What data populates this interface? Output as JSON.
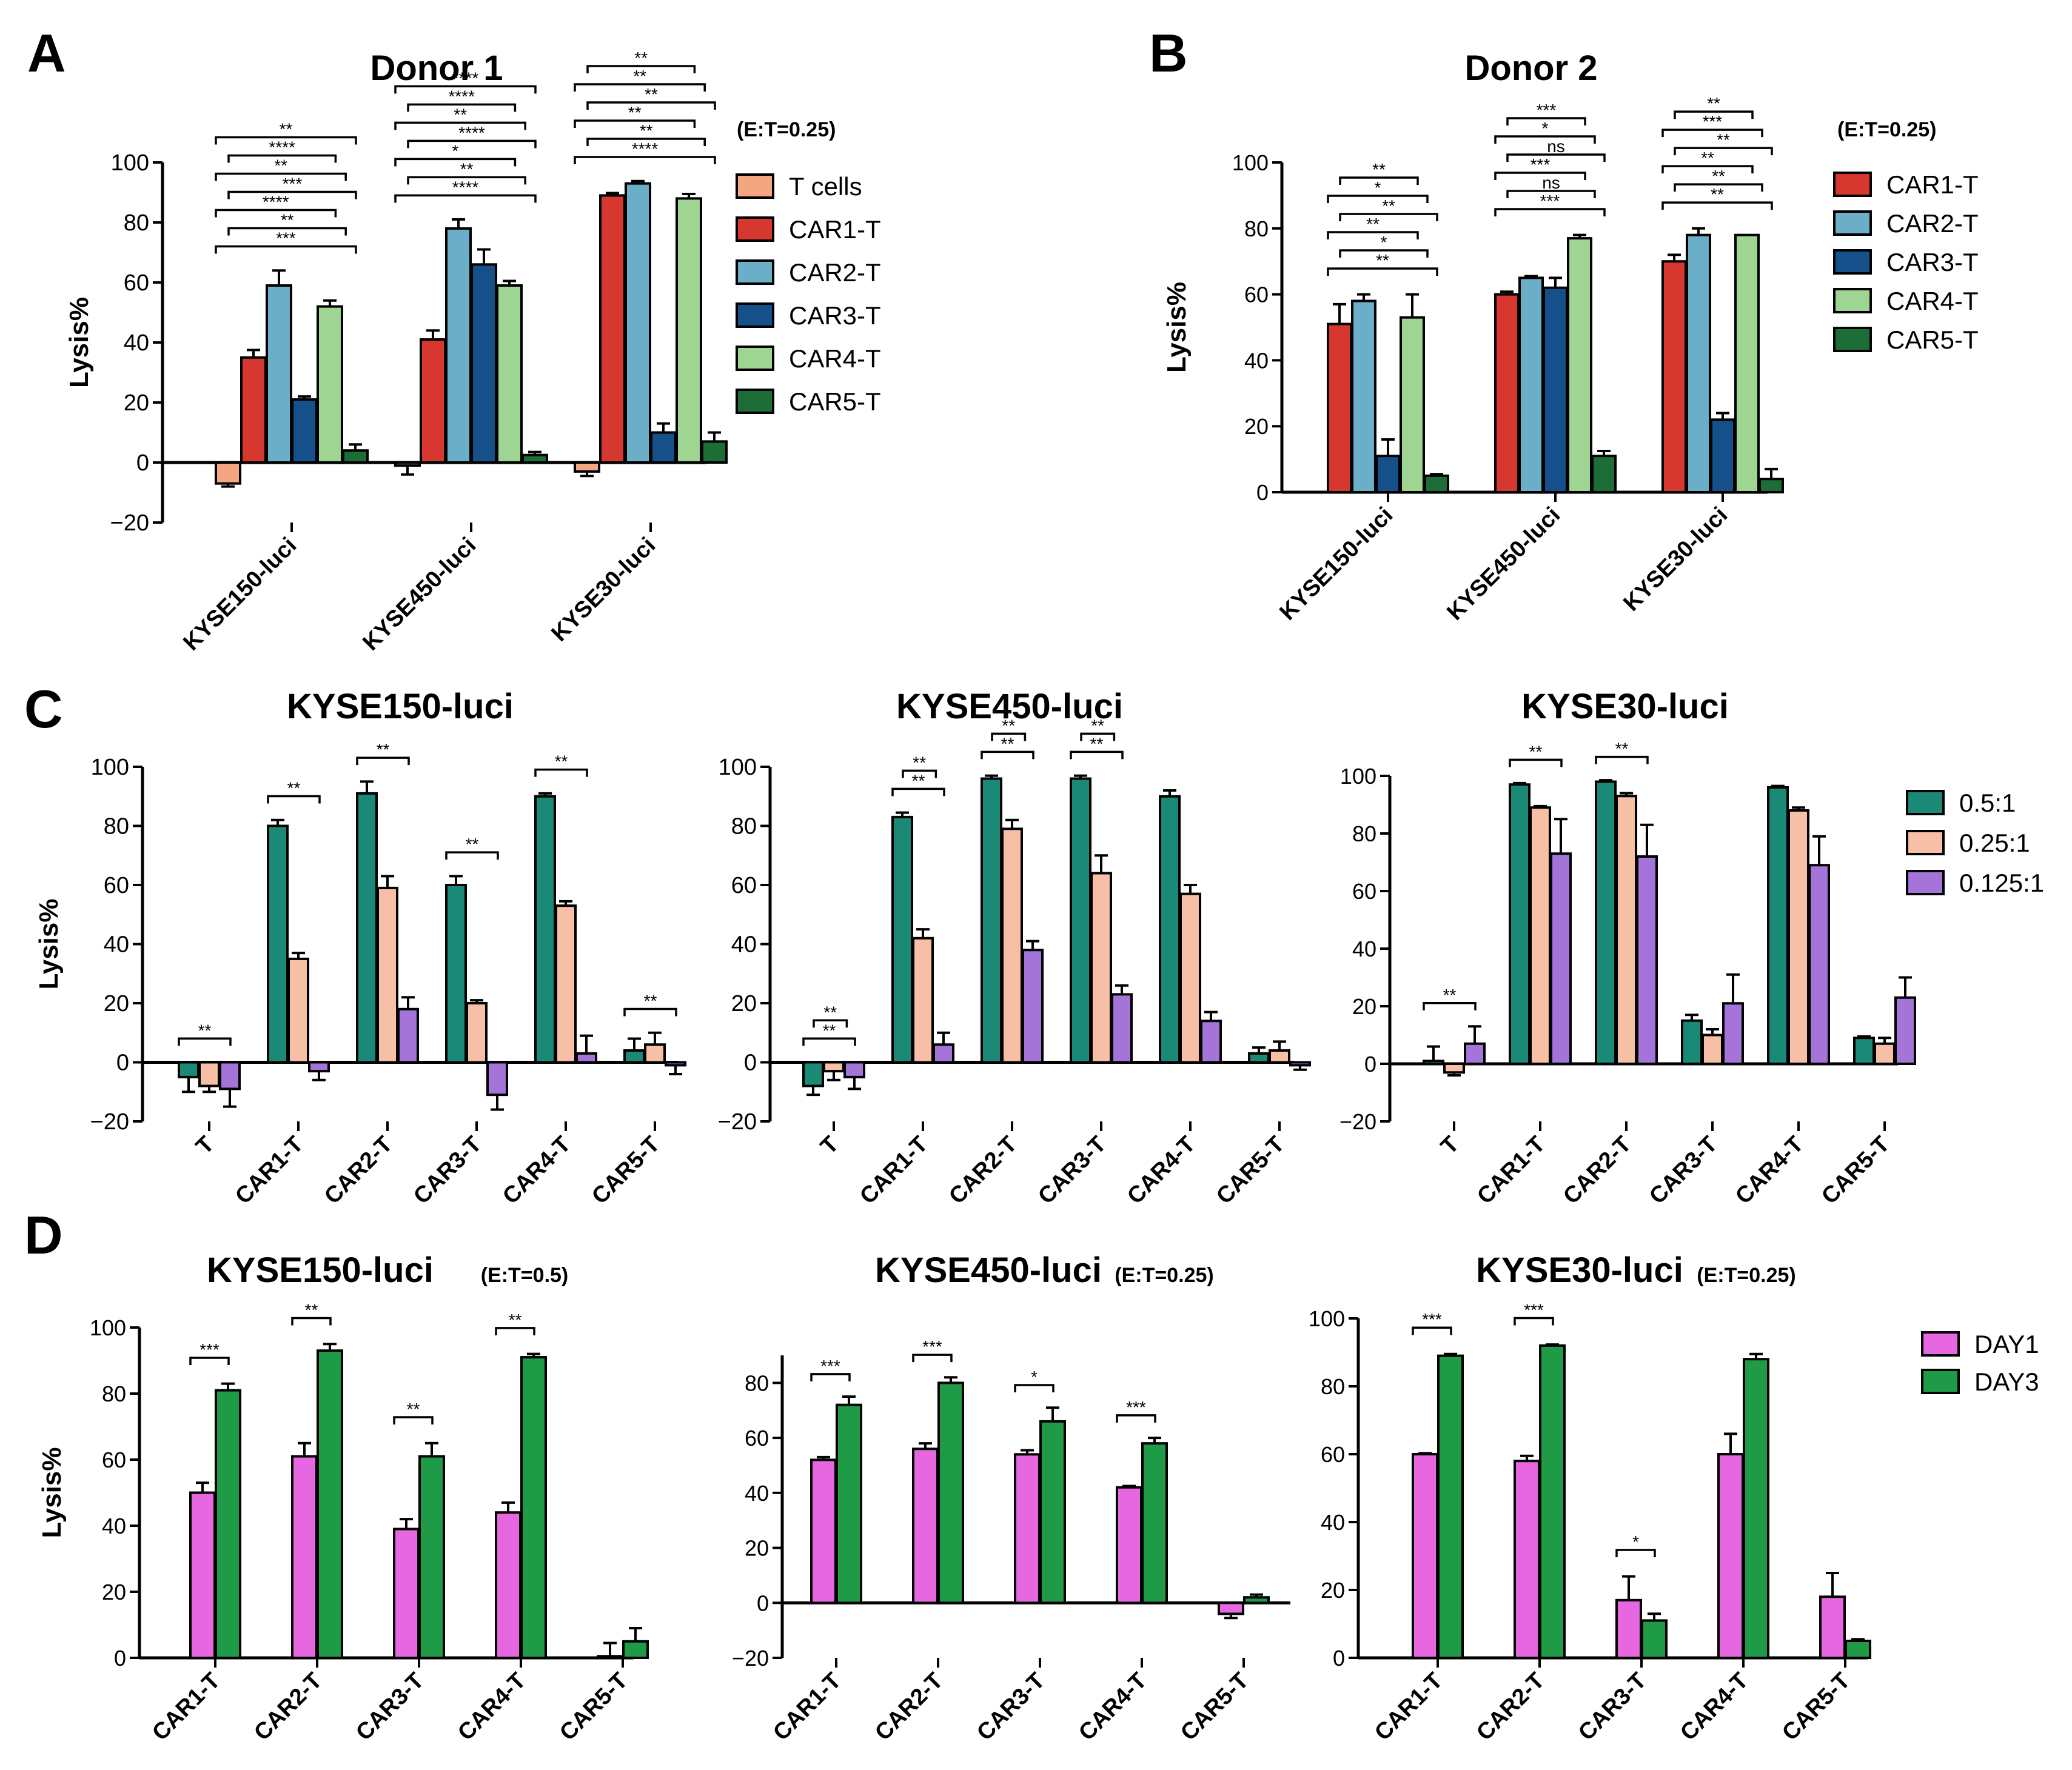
{
  "figure": {
    "colors": {
      "T": "#f4a582",
      "CAR1": "#d6372e",
      "CAR2": "#6aaec8",
      "CAR3": "#15508a",
      "CAR4": "#9fd592",
      "CAR5": "#1c6e36",
      "r05": "#1a8a77",
      "r025": "#f7bfa5",
      "r0125": "#a474d8",
      "DAY1": "#e667e0",
      "DAY3": "#1f9b47"
    }
  },
  "chart_data": [
    {
      "id": "A",
      "panel_letter": "A",
      "type": "bar",
      "title": "Donor 1",
      "note": "(E:T=0.25)",
      "ylabel": "Lysis%",
      "ylim": [
        -20,
        100
      ],
      "yticks": [
        "−20",
        "0",
        "20",
        "40",
        "60",
        "80",
        "100"
      ],
      "categories": [
        "KYSE150-luci",
        "KYSE450-luci",
        "KYSE30-luci"
      ],
      "series": [
        {
          "name": "T cells",
          "color": "T",
          "values": [
            -7,
            -1,
            -3
          ],
          "errors": [
            1,
            3,
            1.5
          ]
        },
        {
          "name": "CAR1-T",
          "color": "CAR1",
          "values": [
            35,
            41,
            89
          ],
          "errors": [
            2.5,
            3,
            0.8
          ]
        },
        {
          "name": "CAR2-T",
          "color": "CAR2",
          "values": [
            59,
            78,
            93
          ],
          "errors": [
            5,
            3,
            0.8
          ]
        },
        {
          "name": "CAR3-T",
          "color": "CAR3",
          "values": [
            21,
            66,
            10
          ],
          "errors": [
            1,
            5,
            3
          ]
        },
        {
          "name": "CAR4-T",
          "color": "CAR4",
          "values": [
            52,
            59,
            88
          ],
          "errors": [
            2,
            1.5,
            1.5
          ]
        },
        {
          "name": "CAR5-T",
          "color": "CAR5",
          "values": [
            4,
            2.5,
            7
          ],
          "errors": [
            2,
            1,
            3
          ]
        }
      ],
      "legend": [
        "T cells",
        "CAR1-T",
        "CAR2-T",
        "CAR3-T",
        "CAR4-T",
        "CAR5-T"
      ],
      "significance": [
        "***",
        "**",
        "****",
        "***",
        "**",
        "****",
        "**",
        "****",
        "**",
        "*",
        "****",
        "**",
        "****",
        "****",
        "****",
        "**",
        "**",
        "**",
        "**",
        "**"
      ]
    },
    {
      "id": "B",
      "panel_letter": "B",
      "type": "bar",
      "title": "Donor 2",
      "note": "(E:T=0.25)",
      "ylabel": "Lysis%",
      "ylim": [
        0,
        100
      ],
      "yticks": [
        "0",
        "20",
        "40",
        "60",
        "80",
        "100"
      ],
      "categories": [
        "KYSE150-luci",
        "KYSE450-luci",
        "KYSE30-luci"
      ],
      "series": [
        {
          "name": "CAR1-T",
          "color": "CAR1",
          "values": [
            51,
            60,
            70
          ],
          "errors": [
            6,
            0.8,
            2
          ]
        },
        {
          "name": "CAR2-T",
          "color": "CAR2",
          "values": [
            58,
            65,
            78
          ],
          "errors": [
            2,
            0.5,
            2
          ]
        },
        {
          "name": "CAR3-T",
          "color": "CAR3",
          "values": [
            11,
            62,
            22
          ],
          "errors": [
            5,
            3,
            2
          ]
        },
        {
          "name": "CAR4-T",
          "color": "CAR4",
          "values": [
            53,
            77,
            78
          ],
          "errors": [
            7,
            1,
            0
          ]
        },
        {
          "name": "CAR5-T",
          "color": "CAR5",
          "values": [
            5,
            11,
            4
          ],
          "errors": [
            0.5,
            1.5,
            3
          ]
        }
      ],
      "legend": [
        "CAR1-T",
        "CAR2-T",
        "CAR3-T",
        "CAR4-T",
        "CAR5-T"
      ],
      "significance": [
        "**",
        "*",
        "**",
        "**",
        "*",
        "**",
        "***",
        "ns",
        "***",
        "ns",
        "*",
        "***",
        "**",
        "**",
        "**",
        "**",
        "***",
        "**"
      ]
    },
    {
      "id": "C1",
      "panel_letter": "C",
      "type": "bar",
      "title": "KYSE150-luci",
      "ylabel": "Lysis%",
      "ylim": [
        -20,
        100
      ],
      "yticks": [
        "−20",
        "0",
        "20",
        "40",
        "60",
        "80",
        "100"
      ],
      "categories": [
        "T",
        "CAR1-T",
        "CAR2-T",
        "CAR3-T",
        "CAR4-T",
        "CAR5-T"
      ],
      "series": [
        {
          "name": "0.5:1",
          "color": "r05",
          "values": [
            -5,
            80,
            91,
            60,
            90,
            4
          ],
          "errors": [
            5,
            2,
            4,
            3,
            1,
            4
          ]
        },
        {
          "name": "0.25:1",
          "color": "r025",
          "values": [
            -8,
            35,
            59,
            20,
            53,
            6
          ],
          "errors": [
            2,
            2,
            4,
            1,
            1.5,
            4
          ]
        },
        {
          "name": "0.125:1",
          "color": "r0125",
          "values": [
            -9,
            -3,
            18,
            -11,
            3,
            -1
          ],
          "errors": [
            6,
            3,
            4,
            5,
            6,
            3
          ]
        }
      ],
      "significance": [
        "**",
        "**",
        "**",
        "**",
        "**",
        "**"
      ]
    },
    {
      "id": "C2",
      "type": "bar",
      "title": "KYSE450-luci",
      "ylabel": "",
      "ylim": [
        -20,
        100
      ],
      "yticks": [
        "−20",
        "0",
        "20",
        "40",
        "60",
        "80",
        "100"
      ],
      "categories": [
        "T",
        "CAR1-T",
        "CAR2-T",
        "CAR3-T",
        "CAR4-T",
        "CAR5-T"
      ],
      "series": [
        {
          "name": "0.5:1",
          "color": "r05",
          "values": [
            -8,
            83,
            96,
            96,
            90,
            3
          ],
          "errors": [
            3,
            1.5,
            1,
            1,
            2,
            2
          ]
        },
        {
          "name": "0.25:1",
          "color": "r025",
          "values": [
            -3,
            42,
            79,
            64,
            57,
            4
          ],
          "errors": [
            3,
            3,
            3,
            6,
            3,
            3
          ]
        },
        {
          "name": "0.125:1",
          "color": "r0125",
          "values": [
            -5,
            6,
            38,
            23,
            14,
            -1
          ],
          "errors": [
            4,
            4,
            3,
            3,
            3,
            1.5
          ]
        }
      ],
      "significance": [
        "**",
        "**",
        "**",
        "**",
        "**",
        "**",
        "**",
        "**"
      ]
    },
    {
      "id": "C3",
      "type": "bar",
      "title": "KYSE30-luci",
      "ylabel": "",
      "ylim": [
        -20,
        100
      ],
      "yticks": [
        "−20",
        "0",
        "20",
        "40",
        "60",
        "80",
        "100"
      ],
      "categories": [
        "T",
        "CAR1-T",
        "CAR2-T",
        "CAR3-T",
        "CAR4-T",
        "CAR5-T"
      ],
      "series": [
        {
          "name": "0.5:1",
          "color": "r05",
          "values": [
            1,
            97,
            98,
            15,
            96,
            9
          ],
          "errors": [
            5,
            0.5,
            0.5,
            2,
            0.5,
            0.5
          ]
        },
        {
          "name": "0.25:1",
          "color": "r025",
          "values": [
            -3,
            89,
            93,
            10,
            88,
            7
          ],
          "errors": [
            1,
            0.5,
            1,
            2,
            1,
            2
          ]
        },
        {
          "name": "0.125:1",
          "color": "r0125",
          "values": [
            7,
            73,
            72,
            21,
            69,
            23
          ],
          "errors": [
            6,
            12,
            11,
            10,
            10,
            7
          ]
        }
      ],
      "legend": [
        "0.5:1",
        "0.25:1",
        "0.125:1"
      ],
      "significance": [
        "**",
        "**",
        "**"
      ]
    },
    {
      "id": "D1",
      "panel_letter": "D",
      "type": "bar",
      "title": "KYSE150-luci",
      "note": "(E:T=0.5)",
      "ylabel": "Lysis%",
      "ylim": [
        0,
        100
      ],
      "yticks": [
        "0",
        "20",
        "40",
        "60",
        "80",
        "100"
      ],
      "categories": [
        "CAR1-T",
        "CAR2-T",
        "CAR3-T",
        "CAR4-T",
        "CAR5-T"
      ],
      "series": [
        {
          "name": "DAY1",
          "color": "DAY1",
          "values": [
            50,
            61,
            39,
            44,
            0.5
          ],
          "errors": [
            3,
            4,
            3,
            3,
            4
          ]
        },
        {
          "name": "DAY3",
          "color": "DAY3",
          "values": [
            81,
            93,
            61,
            91,
            5
          ],
          "errors": [
            2,
            2,
            4,
            1,
            4
          ]
        }
      ],
      "significance": [
        "***",
        "**",
        "**",
        "**"
      ]
    },
    {
      "id": "D2",
      "type": "bar",
      "title": "KYSE450-luci",
      "note": "(E:T=0.25)",
      "ylabel": "",
      "ylim": [
        -20,
        90
      ],
      "yticks": [
        "−20",
        "0",
        "20",
        "40",
        "60",
        "80"
      ],
      "categories": [
        "CAR1-T",
        "CAR2-T",
        "CAR3-T",
        "CAR4-T",
        "CAR5-T"
      ],
      "series": [
        {
          "name": "DAY1",
          "color": "DAY1",
          "values": [
            52,
            56,
            54,
            42,
            -4
          ],
          "errors": [
            1,
            2,
            1.5,
            0.5,
            1.5
          ]
        },
        {
          "name": "DAY3",
          "color": "DAY3",
          "values": [
            72,
            80,
            66,
            58,
            2
          ],
          "errors": [
            3,
            2,
            5,
            2,
            1
          ]
        }
      ],
      "significance": [
        "***",
        "***",
        "*",
        "***"
      ]
    },
    {
      "id": "D3",
      "type": "bar",
      "title": "KYSE30-luci",
      "note": "(E:T=0.25)",
      "ylabel": "",
      "ylim": [
        0,
        100
      ],
      "yticks": [
        "0",
        "20",
        "40",
        "60",
        "80",
        "100"
      ],
      "categories": [
        "CAR1-T",
        "CAR2-T",
        "CAR3-T",
        "CAR4-T",
        "CAR5-T"
      ],
      "series": [
        {
          "name": "DAY1",
          "color": "DAY1",
          "values": [
            60,
            58,
            17,
            60,
            18
          ],
          "errors": [
            0.3,
            1.5,
            7,
            6,
            7
          ]
        },
        {
          "name": "DAY3",
          "color": "DAY3",
          "values": [
            89,
            92,
            11,
            88,
            5
          ],
          "errors": [
            0.5,
            0.3,
            2,
            1.5,
            0.5
          ]
        }
      ],
      "legend": [
        "DAY1",
        "DAY3"
      ],
      "significance": [
        "***",
        "***",
        "*"
      ]
    }
  ]
}
